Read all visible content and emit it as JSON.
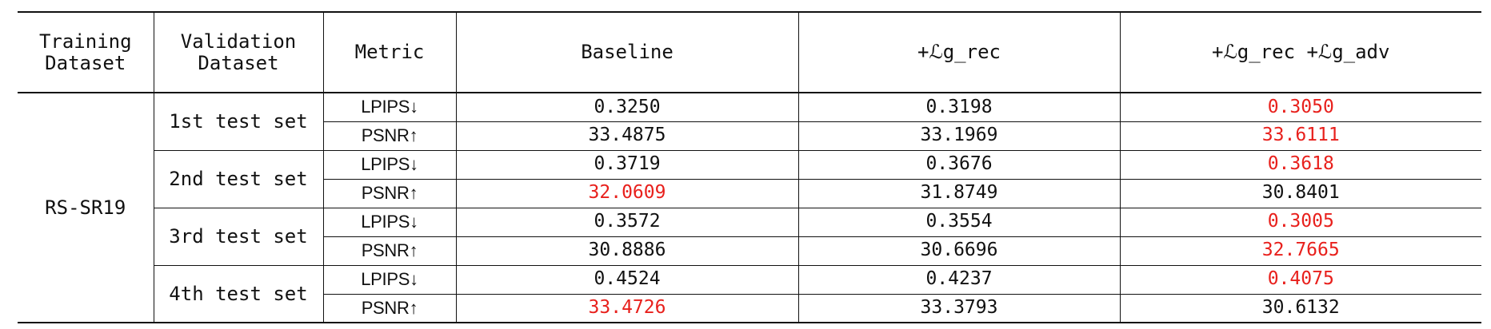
{
  "table": {
    "headers": [
      "Training\nDataset",
      "Validation\nDataset",
      "Metric",
      "Baseline",
      "+ℒg_rec",
      "+ℒg_rec +ℒg_adv"
    ],
    "training_dataset": "RS-SR19",
    "best_color": "#e8201c",
    "groups": [
      {
        "validation": "1st test set",
        "rows": [
          {
            "metric": "LPIPS↓",
            "values": [
              "0.3250",
              "0.3198",
              "0.3050"
            ],
            "best": 2
          },
          {
            "metric": "PSNR↑",
            "values": [
              "33.4875",
              "33.1969",
              "33.6111"
            ],
            "best": 2
          }
        ]
      },
      {
        "validation": "2nd test set",
        "rows": [
          {
            "metric": "LPIPS↓",
            "values": [
              "0.3719",
              "0.3676",
              "0.3618"
            ],
            "best": 2
          },
          {
            "metric": "PSNR↑",
            "values": [
              "32.0609",
              "31.8749",
              "30.8401"
            ],
            "best": 0
          }
        ]
      },
      {
        "validation": "3rd test set",
        "rows": [
          {
            "metric": "LPIPS↓",
            "values": [
              "0.3572",
              "0.3554",
              "0.3005"
            ],
            "best": 2
          },
          {
            "metric": "PSNR↑",
            "values": [
              "30.8886",
              "30.6696",
              "32.7665"
            ],
            "best": 2
          }
        ]
      },
      {
        "validation": "4th test set",
        "rows": [
          {
            "metric": "LPIPS↓",
            "values": [
              "0.4524",
              "0.4237",
              "0.4075"
            ],
            "best": 2
          },
          {
            "metric": "PSNR↑",
            "values": [
              "33.4726",
              "33.3793",
              "30.6132"
            ],
            "best": 0
          }
        ]
      }
    ]
  }
}
